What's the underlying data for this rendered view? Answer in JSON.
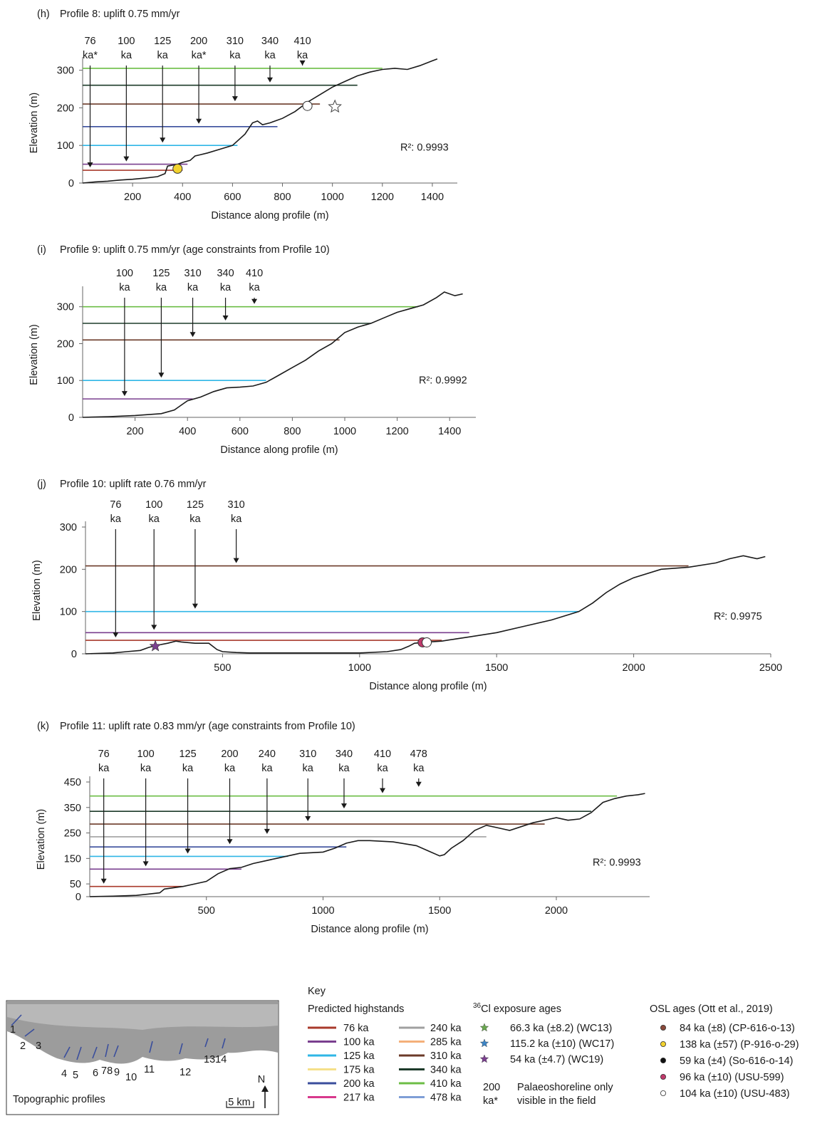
{
  "chart_data": [
    {
      "type": "line",
      "label": "(h)",
      "title": "Profile 8: uplift 0.75 mm/yr",
      "xlabel": "Distance along profile (m)",
      "ylabel": "Elevation (m)",
      "xlim": [
        0,
        1500
      ],
      "ylim": [
        0,
        320
      ],
      "xticks": [
        200,
        400,
        600,
        800,
        1000,
        1200,
        1400
      ],
      "yticks": [
        0,
        100,
        200,
        300
      ],
      "r2": "R²: 0.9993",
      "profile": {
        "x": [
          0,
          50,
          100,
          150,
          200,
          250,
          300,
          330,
          340,
          380,
          400,
          430,
          450,
          470,
          500,
          550,
          600,
          650,
          680,
          700,
          720,
          750,
          800,
          850,
          900,
          950,
          1000,
          1050,
          1100,
          1150,
          1200,
          1250,
          1300,
          1350,
          1400,
          1420
        ],
        "y": [
          0,
          3,
          5,
          8,
          10,
          13,
          17,
          25,
          45,
          50,
          55,
          60,
          72,
          75,
          80,
          90,
          100,
          130,
          160,
          165,
          155,
          160,
          172,
          190,
          215,
          235,
          255,
          270,
          285,
          295,
          302,
          305,
          302,
          312,
          325,
          330
        ]
      },
      "highstands": [
        {
          "age": "76 ka",
          "elev": 34,
          "xend": 400
        },
        {
          "age": "100 ka",
          "elev": 50,
          "xend": 420
        },
        {
          "age": "125 ka",
          "elev": 100,
          "xend": 620
        },
        {
          "age": "200 ka",
          "elev": 150,
          "xend": 780
        },
        {
          "age": "310 ka",
          "elev": 210,
          "xend": 950
        },
        {
          "age": "340 ka",
          "elev": 260,
          "xend": 1100
        },
        {
          "age": "410 ka",
          "elev": 305,
          "xend": 1200
        }
      ],
      "age_labels": [
        {
          "line1": "76",
          "line2": "ka*",
          "x": 30,
          "arrow_to": 34
        },
        {
          "line1": "100",
          "line2": "ka",
          "x": 175,
          "arrow_to": 50
        },
        {
          "line1": "125",
          "line2": "ka",
          "x": 320,
          "arrow_to": 100
        },
        {
          "line1": "200",
          "line2": "ka*",
          "x": 465,
          "arrow_to": 150
        },
        {
          "line1": "310",
          "line2": "ka",
          "x": 610,
          "arrow_to": 210
        },
        {
          "line1": "340",
          "line2": "ka",
          "x": 750,
          "arrow_to": 260
        },
        {
          "line1": "410",
          "line2": "ka",
          "x": 880,
          "arrow_to": 305
        }
      ],
      "markers": [
        {
          "kind": "osl-138",
          "x": 380,
          "y": 38
        },
        {
          "kind": "osl-104",
          "x": 900,
          "y": 205
        }
      ]
    },
    {
      "type": "line",
      "label": "(i)",
      "title": "Profile 9: uplift 0.75 mm/yr (age constraints from Profile 10)",
      "xlabel": "Distance along profile (m)",
      "ylabel": "Elevation (m)",
      "xlim": [
        0,
        1500
      ],
      "ylim": [
        0,
        340
      ],
      "xticks": [
        200,
        400,
        600,
        800,
        1000,
        1200,
        1400
      ],
      "yticks": [
        0,
        100,
        200,
        300
      ],
      "r2": "R²: 0.9992",
      "profile": {
        "x": [
          0,
          100,
          200,
          300,
          350,
          380,
          400,
          450,
          500,
          550,
          600,
          650,
          700,
          750,
          800,
          850,
          900,
          950,
          1000,
          1050,
          1100,
          1150,
          1200,
          1250,
          1300,
          1350,
          1380,
          1420,
          1450
        ],
        "y": [
          0,
          2,
          5,
          10,
          20,
          35,
          45,
          55,
          70,
          80,
          82,
          85,
          95,
          115,
          135,
          155,
          180,
          200,
          230,
          245,
          255,
          270,
          285,
          295,
          305,
          325,
          340,
          330,
          335
        ]
      },
      "highstands": [
        {
          "age": "100 ka",
          "elev": 50,
          "xend": 420
        },
        {
          "age": "125 ka",
          "elev": 100,
          "xend": 700
        },
        {
          "age": "310 ka",
          "elev": 210,
          "xend": 980
        },
        {
          "age": "340 ka",
          "elev": 255,
          "xend": 1100
        },
        {
          "age": "410 ka",
          "elev": 300,
          "xend": 1280
        }
      ],
      "age_labels": [
        {
          "line1": "100",
          "line2": "ka",
          "x": 160,
          "arrow_to": 50
        },
        {
          "line1": "125",
          "line2": "ka",
          "x": 300,
          "arrow_to": 100
        },
        {
          "line1": "310",
          "line2": "ka",
          "x": 420,
          "arrow_to": 210
        },
        {
          "line1": "340",
          "line2": "ka",
          "x": 545,
          "arrow_to": 255
        },
        {
          "line1": "410",
          "line2": "ka",
          "x": 655,
          "arrow_to": 300
        }
      ],
      "markers": []
    },
    {
      "type": "line",
      "label": "(j)",
      "title": "Profile 10: uplift rate 0.76 mm/yr",
      "xlabel": "Distance along profile (m)",
      "ylabel": "Elevation (m)",
      "xlim": [
        0,
        2500
      ],
      "ylim": [
        0,
        300
      ],
      "xticks": [
        500,
        1000,
        1500,
        2000,
        2500
      ],
      "yticks": [
        0,
        100,
        200,
        300
      ],
      "r2": "R²: 0.9975",
      "profile": {
        "x": [
          0,
          100,
          150,
          200,
          230,
          260,
          300,
          330,
          350,
          400,
          450,
          480,
          500,
          550,
          600,
          800,
          1000,
          1100,
          1150,
          1180,
          1200,
          1250,
          1300,
          1350,
          1400,
          1500,
          1600,
          1700,
          1800,
          1850,
          1900,
          1950,
          2000,
          2100,
          2200,
          2300,
          2350,
          2400,
          2450,
          2480
        ],
        "y": [
          0,
          2,
          5,
          8,
          15,
          20,
          25,
          30,
          28,
          25,
          25,
          10,
          5,
          3,
          2,
          2,
          2,
          5,
          10,
          18,
          25,
          28,
          30,
          35,
          40,
          50,
          65,
          80,
          100,
          120,
          145,
          165,
          180,
          200,
          205,
          215,
          225,
          232,
          225,
          230
        ]
      },
      "highstands": [
        {
          "age": "76 ka",
          "elev": 32,
          "xend": 1300
        },
        {
          "age": "100 ka",
          "elev": 50,
          "xend": 1400
        },
        {
          "age": "125 ka",
          "elev": 100,
          "xend": 1800
        },
        {
          "age": "310 ka",
          "elev": 208,
          "xend": 2200
        }
      ],
      "age_labels": [
        {
          "line1": "76",
          "line2": "ka",
          "x": 110,
          "arrow_to": 32
        },
        {
          "line1": "100",
          "line2": "ka",
          "x": 250,
          "arrow_to": 50
        },
        {
          "line1": "125",
          "line2": "ka",
          "x": 400,
          "arrow_to": 100
        },
        {
          "line1": "310",
          "line2": "ka",
          "x": 550,
          "arrow_to": 208
        }
      ],
      "markers": [
        {
          "kind": "cl-54",
          "x": 255,
          "y": 18
        },
        {
          "kind": "osl-96",
          "x": 1230,
          "y": 27
        },
        {
          "kind": "osl-104",
          "x": 1245,
          "y": 27
        }
      ]
    },
    {
      "type": "line",
      "label": "(k)",
      "title": "Profile 11: uplift rate  0.83 mm/yr (age constraints from Profile 10)",
      "xlabel": "Distance along profile (m)",
      "ylabel": "Elevation (m)",
      "xlim": [
        0,
        2400
      ],
      "ylim": [
        0,
        450
      ],
      "xticks": [
        500,
        1000,
        1500,
        2000
      ],
      "yticks": [
        0,
        50,
        150,
        250,
        350,
        450
      ],
      "r2": "R²: 0.9993",
      "profile": {
        "x": [
          0,
          100,
          200,
          250,
          300,
          320,
          400,
          450,
          500,
          550,
          600,
          650,
          700,
          800,
          900,
          1000,
          1050,
          1100,
          1150,
          1200,
          1300,
          1400,
          1450,
          1500,
          1520,
          1550,
          1600,
          1650,
          1700,
          1750,
          1800,
          1900,
          2000,
          2050,
          2100,
          2150,
          2200,
          2250,
          2300,
          2350,
          2380
        ],
        "y": [
          0,
          2,
          5,
          10,
          15,
          30,
          40,
          50,
          60,
          90,
          110,
          115,
          130,
          150,
          170,
          175,
          190,
          210,
          220,
          220,
          215,
          200,
          180,
          160,
          165,
          190,
          220,
          260,
          280,
          270,
          260,
          290,
          310,
          300,
          305,
          330,
          370,
          385,
          395,
          400,
          405
        ]
      },
      "highstands": [
        {
          "age": "76 ka",
          "elev": 40,
          "xend": 400
        },
        {
          "age": "100 ka",
          "elev": 108,
          "xend": 650
        },
        {
          "age": "125 ka",
          "elev": 158,
          "xend": 850
        },
        {
          "age": "200 ka",
          "elev": 195,
          "xend": 1100
        },
        {
          "age": "240 ka",
          "elev": 235,
          "xend": 1700
        },
        {
          "age": "310 ka",
          "elev": 285,
          "xend": 1950
        },
        {
          "age": "340 ka",
          "elev": 335,
          "xend": 2150
        },
        {
          "age": "410 ka",
          "elev": 395,
          "xend": 2260
        }
      ],
      "age_labels": [
        {
          "line1": "76",
          "line2": "ka",
          "x": 60,
          "arrow_to": 40
        },
        {
          "line1": "100",
          "line2": "ka",
          "x": 240,
          "arrow_to": 108
        },
        {
          "line1": "125",
          "line2": "ka",
          "x": 420,
          "arrow_to": 158
        },
        {
          "line1": "200",
          "line2": "ka",
          "x": 600,
          "arrow_to": 195
        },
        {
          "line1": "240",
          "line2": "ka",
          "x": 760,
          "arrow_to": 235
        },
        {
          "line1": "310",
          "line2": "ka",
          "x": 935,
          "arrow_to": 285
        },
        {
          "line1": "340",
          "line2": "ka",
          "x": 1090,
          "arrow_to": 335
        },
        {
          "line1": "410",
          "line2": "ka",
          "x": 1255,
          "arrow_to": 395
        },
        {
          "line1": "478",
          "line2": "ka",
          "x": 1410,
          "arrow_to": 420
        }
      ],
      "markers": []
    }
  ],
  "colors": {
    "76 ka": "#a83a2b",
    "100 ka": "#7a3f8f",
    "125 ka": "#2fb6e6",
    "175 ka": "#f5e08a",
    "200 ka": "#3a4e9c",
    "217 ka": "#d8388c",
    "240 ka": "#a0a0a0",
    "285 ka": "#f4b07a",
    "310 ka": "#6b3a28",
    "340 ka": "#1d3b2a",
    "410 ka": "#6cbd45",
    "478 ka": "#7f9fd6"
  },
  "inset_map": {
    "caption": "Topographic profiles",
    "profile_numbers": [
      "1",
      "2",
      "3",
      "4",
      "5",
      "6",
      "78",
      "9",
      "10",
      "11",
      "12",
      "1314"
    ],
    "north_label": "N",
    "scale_label": "5 km"
  },
  "key": {
    "title": "Key",
    "highstands_title": "Predicted highstands",
    "highstands_col1": [
      "76 ka",
      "100 ka",
      "125 ka",
      "175 ka",
      "200 ka",
      "217 ka"
    ],
    "highstands_col2": [
      "240 ka",
      "285 ka",
      "310 ka",
      "340 ka",
      "410 ka",
      "478 ka"
    ],
    "cl_title_sup": "36",
    "cl_title": "Cl exposure ages",
    "cl_entries": [
      {
        "label": "66.3 ka (±8.2) (WC13)",
        "color": "#6aa84f"
      },
      {
        "label": "115.2 ka (±10) (WC17)",
        "color": "#3d85c6"
      },
      {
        "label": "54 ka (±4.7) (WC19)",
        "color": "#7a3f8f"
      }
    ],
    "palaeo_age_line1": "200",
    "palaeo_age_line2": "ka*",
    "palaeo_text_line1": "Palaeoshoreline only",
    "palaeo_text_line2": "visible in the field",
    "osl_title": "OSL ages (Ott et al., 2019)",
    "osl_entries": [
      {
        "label": "84 ka (±8) (CP-616-o-13)",
        "color": "#8a4a3a"
      },
      {
        "label": "138 ka (±57) (P-916-o-29)",
        "color": "#f2d22e"
      },
      {
        "label": "59 ka (±4) (So-616-o-14)",
        "color": "#111111"
      },
      {
        "label": "96 ka (±10) (USU-599)",
        "color": "#c0396b"
      },
      {
        "label": "104 ka (±10) (USU-483)",
        "color": "#ffffff"
      }
    ]
  }
}
